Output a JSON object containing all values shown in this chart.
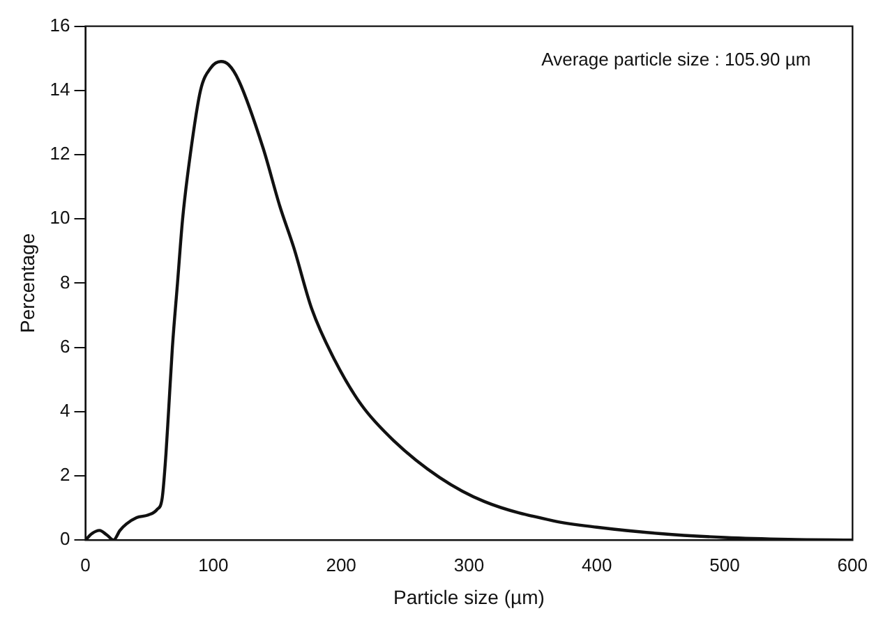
{
  "chart_data": {
    "type": "line",
    "xlabel": "Particle size (µm)",
    "ylabel": "Percentage",
    "annotations": [
      "Average particle size : 105.90 µm"
    ],
    "series": [
      {
        "color": "#111111",
        "x": [
          0,
          5,
          11,
          17,
          22,
          27,
          32,
          40,
          49,
          56,
          60,
          63,
          65,
          68,
          72,
          76,
          82,
          90,
          98,
          106,
          112,
          120,
          139,
          152,
          163,
          177,
          195,
          216,
          241,
          277,
          312,
          366,
          400,
          450,
          500,
          550,
          600
        ],
        "values": [
          0,
          0.2,
          0.3,
          0.15,
          0,
          0.3,
          0.5,
          0.7,
          0.78,
          0.95,
          1.3,
          2.7,
          4,
          6,
          8,
          10,
          12,
          14,
          14.7,
          14.9,
          14.8,
          14.3,
          12.2,
          10.4,
          9.1,
          7.2,
          5.6,
          4.2,
          3.1,
          1.95,
          1.2,
          0.6,
          0.4,
          0.2,
          0.08,
          0.02,
          0
        ]
      }
    ],
    "xlim": [
      0,
      600
    ],
    "xticks": [
      0,
      100,
      200,
      300,
      400,
      500,
      600
    ],
    "ylim": [
      0,
      16
    ],
    "yticks": [
      0,
      2,
      4,
      6,
      8,
      10,
      12,
      14,
      16
    ],
    "grid": false,
    "legend": false,
    "marker": "none",
    "line_style": "solid"
  }
}
